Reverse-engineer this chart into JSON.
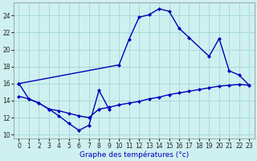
{
  "xlabel": "Graphe des températures (°c)",
  "background_color": "#cff0f0",
  "line_color": "#0000bb",
  "grid_color": "#a0d8d8",
  "yticks": [
    10,
    12,
    14,
    16,
    18,
    20,
    22,
    24
  ],
  "xticks": [
    0,
    1,
    2,
    3,
    4,
    5,
    6,
    7,
    8,
    9,
    10,
    11,
    12,
    13,
    14,
    15,
    16,
    17,
    18,
    19,
    20,
    21,
    22,
    23
  ],
  "xlim": [
    -0.5,
    23.5
  ],
  "ylim": [
    9.5,
    25.5
  ],
  "line1_x": [
    0,
    1,
    2,
    3,
    4,
    5,
    6,
    7,
    8,
    9
  ],
  "line1_y": [
    16.0,
    14.2,
    13.7,
    13.0,
    12.2,
    11.3,
    10.5,
    11.1,
    15.2,
    13.0
  ],
  "line2_x": [
    0,
    10,
    11,
    12,
    13,
    14,
    15,
    16,
    17,
    19,
    20,
    21,
    22,
    23
  ],
  "line2_y": [
    16.0,
    18.2,
    21.2,
    23.8,
    24.1,
    24.8,
    24.5,
    22.5,
    21.4,
    19.2,
    21.3,
    17.5,
    17.0,
    15.8
  ],
  "line3_x": [
    0,
    1,
    2,
    3,
    4,
    5,
    6,
    7,
    8,
    9,
    10,
    11,
    12,
    13,
    14,
    15,
    16,
    17,
    18,
    19,
    20,
    21,
    22,
    23
  ],
  "line3_y": [
    14.5,
    14.2,
    13.7,
    13.0,
    12.8,
    12.5,
    12.2,
    12.0,
    13.0,
    13.2,
    13.5,
    13.7,
    13.9,
    14.2,
    14.4,
    14.7,
    14.9,
    15.1,
    15.3,
    15.5,
    15.7,
    15.8,
    15.9,
    15.8
  ],
  "marker": "D",
  "marker_size": 2.5,
  "line_width": 1.0,
  "tick_fontsize": 5.5,
  "xlabel_fontsize": 6.5,
  "xlabel_color": "#0000bb"
}
